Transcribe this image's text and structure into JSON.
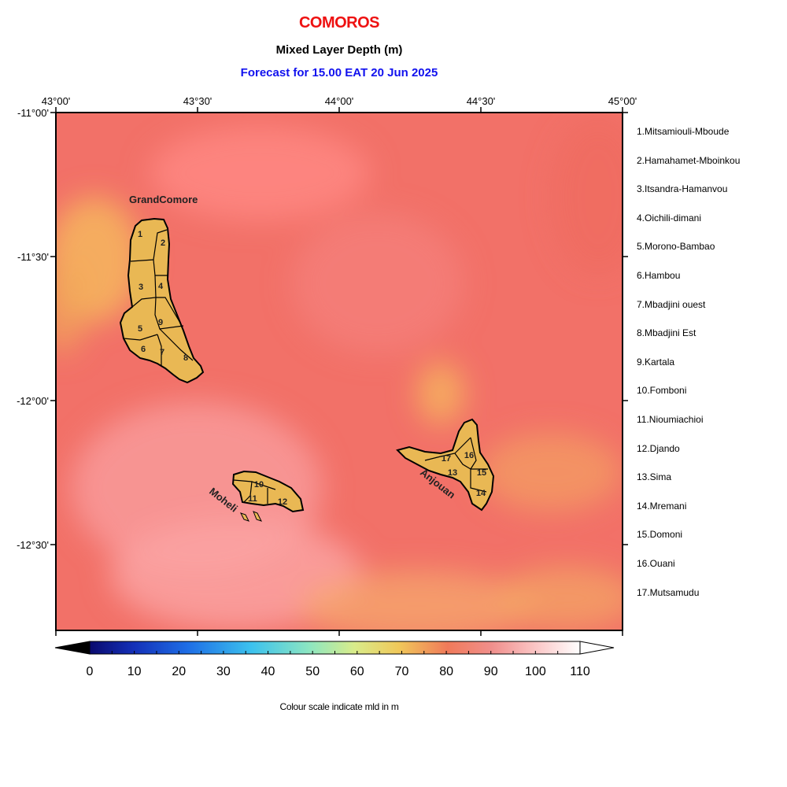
{
  "title": "COMOROS",
  "subtitle": "Mixed Layer Depth (m)",
  "forecast": "Forecast for  15.00 EAT 20 Jun 2025",
  "footer": "Colour scale indicate mld in m",
  "colors": {
    "title": "#ee1111",
    "forecast": "#1111ee",
    "land": "#e9b854",
    "sea_base": "#f27168"
  },
  "lon_ticks": [
    "43°00'",
    "43°30'",
    "44°00'",
    "44°30'",
    "45°00'"
  ],
  "lat_ticks": [
    "-11°00'",
    "-11°30'",
    "-12°00'",
    "-12°30'"
  ],
  "colorbar_ticks": [
    "0",
    "10",
    "20",
    "30",
    "40",
    "50",
    "60",
    "70",
    "80",
    "90",
    "100",
    "110"
  ],
  "island_labels": {
    "grand_comore": "GrandComore",
    "moheli": "Moheli",
    "anjouan": "Anjouan"
  },
  "region_numbers": [
    "1",
    "2",
    "3",
    "4",
    "5",
    "6",
    "7",
    "8",
    "9",
    "10",
    "11",
    "12",
    "13",
    "14",
    "15",
    "16",
    "17"
  ],
  "regions": [
    "1.Mitsamiouli-Mboude",
    "2.Hamahamet-Mboinkou",
    "3.Itsandra-Hamanvou",
    "4.Oichili-dimani",
    "5.Morono-Bambao",
    "6.Hambou",
    "7.Mbadjini ouest",
    "8.Mbadjini Est",
    "9.Kartala",
    "10.Fomboni",
    "11.Nioumiachioi",
    "12.Djando",
    "13.Sima",
    "14.Mremani",
    "15.Domoni",
    "16.Ouani",
    "17.Mutsamudu"
  ]
}
